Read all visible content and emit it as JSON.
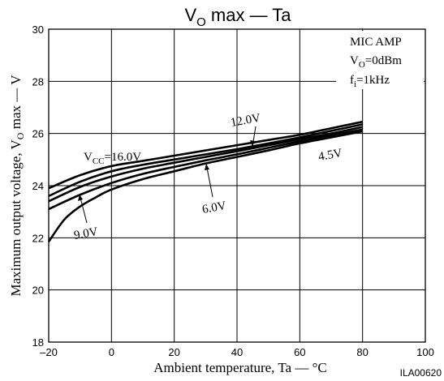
{
  "chart_data": {
    "type": "line",
    "title_main": "V",
    "title_sub": "O",
    "title_rest": " max — Ta",
    "xlabel": "Ambient temperature, Ta — °C",
    "ylabel_main": "Maximum output voltage,  V",
    "ylabel_sub": "O",
    "ylabel_rest": " max — V",
    "xlim": [
      -20,
      100
    ],
    "ylim": [
      18,
      30
    ],
    "xticks": [
      "–20",
      "0",
      "20",
      "40",
      "60",
      "80",
      "100"
    ],
    "yticks": [
      "18",
      "20",
      "22",
      "24",
      "26",
      "28",
      "30"
    ],
    "grid": true,
    "conditions": {
      "line1": "MIC AMP",
      "line2_main": "V",
      "line2_sub": "O",
      "line2_rest": "=0dBm",
      "line3_main": "f",
      "line3_sub": "i",
      "line3_rest": "=1kHz"
    },
    "figure_code": "ILA00620",
    "series": [
      {
        "name": "16.0V",
        "label_main": "V",
        "label_sub": "CC",
        "label_rest": "=16.0V",
        "x": [
          -20,
          -10,
          0,
          10,
          20,
          30,
          40,
          50,
          60,
          70,
          80
        ],
        "y": [
          23.9,
          24.4,
          24.75,
          24.95,
          25.15,
          25.35,
          25.55,
          25.75,
          25.95,
          26.2,
          26.45
        ]
      },
      {
        "name": "12.0V",
        "label_main": "12.0V",
        "label_sub": "",
        "label_rest": "",
        "x": [
          -20,
          -10,
          0,
          10,
          20,
          30,
          40,
          50,
          60,
          70,
          80
        ],
        "y": [
          23.6,
          24.15,
          24.55,
          24.8,
          25.0,
          25.2,
          25.4,
          25.62,
          25.85,
          26.1,
          26.35
        ]
      },
      {
        "name": "9.0V",
        "label_main": "9.0V",
        "label_sub": "",
        "label_rest": "",
        "x": [
          -20,
          -10,
          0,
          10,
          20,
          30,
          40,
          50,
          60,
          70,
          80
        ],
        "y": [
          23.4,
          23.95,
          24.35,
          24.65,
          24.88,
          25.1,
          25.32,
          25.55,
          25.78,
          26.0,
          26.25
        ]
      },
      {
        "name": "6.0V",
        "label_main": "6.0V",
        "label_sub": "",
        "label_rest": "",
        "x": [
          -20,
          -10,
          0,
          10,
          20,
          30,
          40,
          50,
          60,
          70,
          80
        ],
        "y": [
          23.1,
          23.65,
          24.1,
          24.45,
          24.72,
          24.97,
          25.2,
          25.45,
          25.7,
          25.93,
          26.15
        ]
      },
      {
        "name": "4.5V",
        "label_main": "4.5V",
        "label_sub": "",
        "label_rest": "",
        "x": [
          -20,
          -15,
          -10,
          -5,
          0,
          10,
          20,
          30,
          40,
          50,
          60,
          70,
          80
        ],
        "y": [
          21.85,
          22.7,
          23.2,
          23.55,
          23.85,
          24.25,
          24.55,
          24.85,
          25.1,
          25.35,
          25.62,
          25.85,
          26.08
        ]
      }
    ]
  }
}
